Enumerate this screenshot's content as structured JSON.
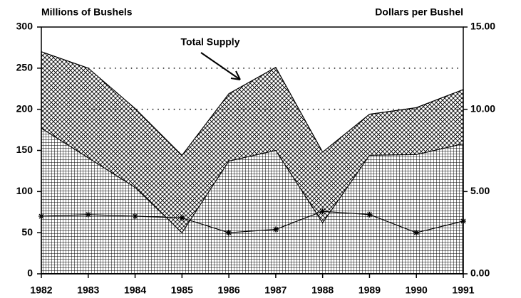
{
  "chart_data": {
    "type": "area",
    "y_label": "Millions of Bushels",
    "y2_label": "Dollars per Bushel",
    "annotation": "Total Supply",
    "x": [
      1982,
      1983,
      1984,
      1985,
      1986,
      1987,
      1988,
      1989,
      1990,
      1991
    ],
    "xlim": [
      1982,
      1991
    ],
    "xticks": [
      1982,
      1983,
      1984,
      1985,
      1986,
      1987,
      1988,
      1989,
      1990,
      1991
    ],
    "ylim": [
      0,
      300
    ],
    "yticks": [
      0,
      50,
      100,
      150,
      200,
      250,
      300
    ],
    "y2lim": [
      0,
      15
    ],
    "y2ticks": [
      {
        "value": 0,
        "label": "0.00"
      },
      {
        "value": 5,
        "label": "5.00"
      },
      {
        "value": 10,
        "label": "10.00"
      },
      {
        "value": 15,
        "label": "15.00"
      }
    ],
    "reference_lines": [
      200,
      250
    ],
    "series": [
      {
        "values": [
          270,
          250,
          201,
          144,
          219,
          251,
          148,
          194,
          202,
          224
        ],
        "pattern": "crosshatch",
        "color": "#000000"
      },
      {
        "values": [
          177,
          141,
          105,
          50,
          137,
          150,
          62,
          144,
          145,
          158
        ],
        "pattern": "grid",
        "color": "#000000"
      },
      {
        "values": [
          3.5,
          3.6,
          3.5,
          3.4,
          2.5,
          2.7,
          3.8,
          3.6,
          2.5,
          3.2
        ],
        "axis": "y2",
        "marker": "star",
        "color": "#000000"
      }
    ]
  }
}
